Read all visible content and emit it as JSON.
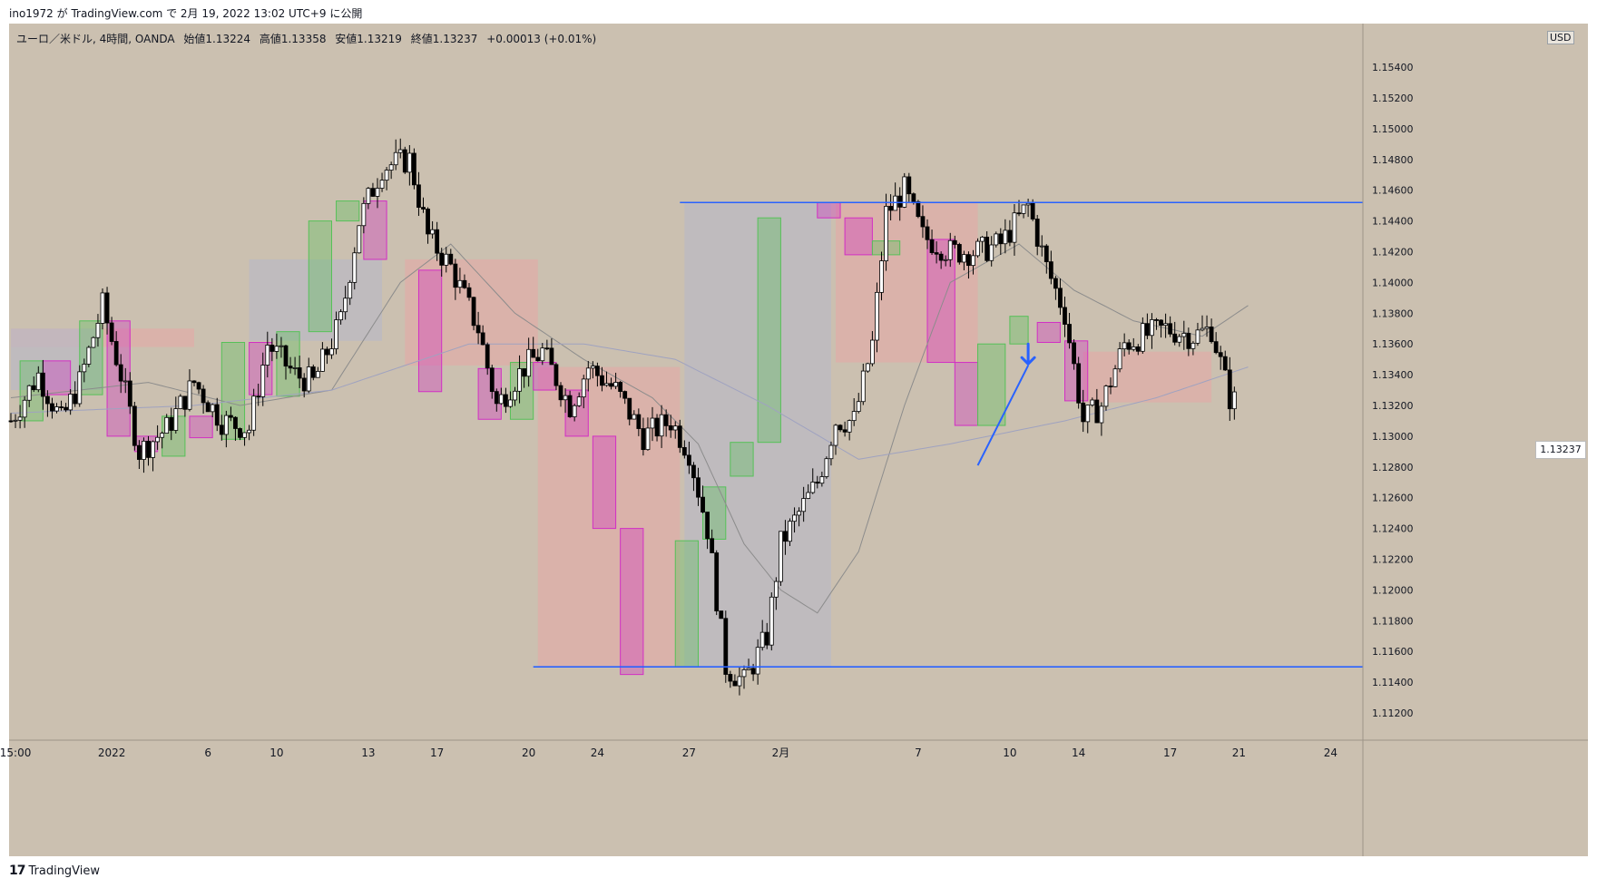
{
  "publish_line": "ino1972 が TradingView.com で 2月 19, 2022 13:02 UTC+9 に公開",
  "legend": {
    "symbol": "ユーロ／米ドル, 4時間, OANDA",
    "open": "始値1.13224",
    "high": "高値1.13358",
    "low": "安値1.13219",
    "close": "終値1.13237",
    "change": "+0.00013 (+0.01%)"
  },
  "currency": "USD",
  "last_price_label": "1.13237",
  "brand": {
    "logo": "17",
    "name": "TradingView"
  },
  "colors": {
    "background": "#cbc0b0",
    "up_candle": "#ffffff",
    "down_candle": "#000000",
    "green_box": "#56c158",
    "magenta_box": "#d22fc4",
    "pink_zone": "#e8a6a6",
    "grey_zone": "#b9b9c4",
    "level_line": "#2962ff"
  },
  "chart_data": {
    "type": "candlestick",
    "title": "",
    "ylim": [
      1.111,
      1.156
    ],
    "y_ticks": [
      "1.15400",
      "1.15200",
      "1.15000",
      "1.14800",
      "1.14600",
      "1.14400",
      "1.14200",
      "1.14000",
      "1.13800",
      "1.13600",
      "1.13400",
      "1.13200",
      "1.13000",
      "1.12800",
      "1.12600",
      "1.12400",
      "1.12200",
      "1.12000",
      "1.11800",
      "1.11600",
      "1.11400",
      "1.11200"
    ],
    "x_ticks": [
      {
        "label": "15:00",
        "bar": 1
      },
      {
        "label": "2022",
        "bar": 22
      },
      {
        "label": "6",
        "bar": 43
      },
      {
        "label": "10",
        "bar": 58
      },
      {
        "label": "13",
        "bar": 78
      },
      {
        "label": "17",
        "bar": 93
      },
      {
        "label": "20",
        "bar": 113
      },
      {
        "label": "24",
        "bar": 128
      },
      {
        "label": "27",
        "bar": 148
      },
      {
        "label": "2月",
        "bar": 168
      },
      {
        "label": "7",
        "bar": 198
      },
      {
        "label": "10",
        "bar": 218
      },
      {
        "label": "14",
        "bar": 233
      },
      {
        "label": "17",
        "bar": 253
      },
      {
        "label": "21",
        "bar": 268
      },
      {
        "label": "24",
        "bar": 288
      }
    ],
    "candle_series": {
      "name": "EUR/USD 4H",
      "unit": "price",
      "anchors": [
        [
          0,
          1.131
        ],
        [
          6,
          1.134
        ],
        [
          11,
          1.131
        ],
        [
          15,
          1.1335
        ],
        [
          20,
          1.1385
        ],
        [
          24,
          1.134
        ],
        [
          28,
          1.129
        ],
        [
          34,
          1.1305
        ],
        [
          40,
          1.1335
        ],
        [
          46,
          1.131
        ],
        [
          52,
          1.1305
        ],
        [
          56,
          1.136
        ],
        [
          62,
          1.134
        ],
        [
          66,
          1.1335
        ],
        [
          72,
          1.1375
        ],
        [
          76,
          1.144
        ],
        [
          81,
          1.1475
        ],
        [
          87,
          1.148
        ],
        [
          91,
          1.143
        ],
        [
          96,
          1.141
        ],
        [
          102,
          1.137
        ],
        [
          106,
          1.132
        ],
        [
          112,
          1.1345
        ],
        [
          116,
          1.1355
        ],
        [
          122,
          1.132
        ],
        [
          126,
          1.1345
        ],
        [
          132,
          1.133
        ],
        [
          138,
          1.13
        ],
        [
          144,
          1.131
        ],
        [
          148,
          1.129
        ],
        [
          152,
          1.124
        ],
        [
          156,
          1.115
        ],
        [
          160,
          1.114
        ],
        [
          165,
          1.117
        ],
        [
          168,
          1.123
        ],
        [
          172,
          1.125
        ],
        [
          176,
          1.127
        ],
        [
          180,
          1.131
        ],
        [
          184,
          1.131
        ],
        [
          188,
          1.136
        ],
        [
          191,
          1.1445
        ],
        [
          195,
          1.146
        ],
        [
          199,
          1.143
        ],
        [
          205,
          1.142
        ],
        [
          211,
          1.142
        ],
        [
          216,
          1.1425
        ],
        [
          222,
          1.145
        ],
        [
          226,
          1.141
        ],
        [
          230,
          1.138
        ],
        [
          234,
          1.131
        ],
        [
          238,
          1.132
        ],
        [
          243,
          1.136
        ],
        [
          247,
          1.1365
        ],
        [
          252,
          1.137
        ],
        [
          258,
          1.1365
        ],
        [
          262,
          1.137
        ],
        [
          266,
          1.1325
        ],
        [
          267,
          1.1323
        ]
      ]
    },
    "moving_averages": [
      {
        "name": "",
        "color": "#8c8c8c",
        "anchors": [
          [
            0,
            1.1325
          ],
          [
            30,
            1.1335
          ],
          [
            50,
            1.132
          ],
          [
            70,
            1.133
          ],
          [
            85,
            1.14
          ],
          [
            96,
            1.1425
          ],
          [
            110,
            1.138
          ],
          [
            125,
            1.135
          ],
          [
            140,
            1.1325
          ],
          [
            150,
            1.1295
          ],
          [
            160,
            1.123
          ],
          [
            168,
            1.12
          ],
          [
            176,
            1.1185
          ],
          [
            185,
            1.1225
          ],
          [
            195,
            1.132
          ],
          [
            205,
            1.14
          ],
          [
            220,
            1.1425
          ],
          [
            232,
            1.1395
          ],
          [
            245,
            1.1375
          ],
          [
            260,
            1.1365
          ],
          [
            270,
            1.1385
          ]
        ]
      },
      {
        "name": "",
        "color": "#9fa2c0",
        "anchors": [
          [
            0,
            1.1315
          ],
          [
            40,
            1.132
          ],
          [
            70,
            1.133
          ],
          [
            100,
            1.136
          ],
          [
            125,
            1.136
          ],
          [
            145,
            1.135
          ],
          [
            165,
            1.132
          ],
          [
            185,
            1.1285
          ],
          [
            205,
            1.1295
          ],
          [
            230,
            1.131
          ],
          [
            250,
            1.1325
          ],
          [
            270,
            1.1345
          ]
        ]
      }
    ],
    "zones": [
      {
        "type": "pink",
        "bars": [
          0,
          40
        ],
        "price": [
          1.137,
          1.1358
        ]
      },
      {
        "type": "grey",
        "bars": [
          0,
          20
        ],
        "price": [
          1.137,
          1.133
        ]
      },
      {
        "type": "grey",
        "bars": [
          52,
          81
        ],
        "price": [
          1.1415,
          1.1362
        ]
      },
      {
        "type": "pink",
        "bars": [
          86,
          115
        ],
        "price": [
          1.1415,
          1.1346
        ]
      },
      {
        "type": "pink",
        "bars": [
          115,
          146
        ],
        "price": [
          1.1345,
          1.115
        ]
      },
      {
        "type": "grey",
        "bars": [
          147,
          179
        ],
        "price": [
          1.1452,
          1.115
        ]
      },
      {
        "type": "pink",
        "bars": [
          180,
          211
        ],
        "price": [
          1.1452,
          1.1348
        ]
      },
      {
        "type": "pink",
        "bars": [
          234,
          262
        ],
        "price": [
          1.1355,
          1.1322
        ]
      }
    ],
    "boxes": [
      {
        "color": "green",
        "bars": [
          2,
          7
        ],
        "price": [
          1.1349,
          1.131
        ]
      },
      {
        "color": "magenta",
        "bars": [
          7,
          13
        ],
        "price": [
          1.1349,
          1.1327
        ]
      },
      {
        "color": "green",
        "bars": [
          15,
          20
        ],
        "price": [
          1.1375,
          1.1327
        ]
      },
      {
        "color": "magenta",
        "bars": [
          21,
          26
        ],
        "price": [
          1.1375,
          1.13
        ]
      },
      {
        "color": "magenta",
        "bars": [
          27,
          32
        ],
        "price": [
          1.13,
          1.129
        ]
      },
      {
        "color": "green",
        "bars": [
          33,
          38
        ],
        "price": [
          1.1313,
          1.1287
        ]
      },
      {
        "color": "magenta",
        "bars": [
          39,
          44
        ],
        "price": [
          1.1313,
          1.1299
        ]
      },
      {
        "color": "green",
        "bars": [
          46,
          51
        ],
        "price": [
          1.1361,
          1.1298
        ]
      },
      {
        "color": "magenta",
        "bars": [
          52,
          57
        ],
        "price": [
          1.1361,
          1.1327
        ]
      },
      {
        "color": "green",
        "bars": [
          58,
          63
        ],
        "price": [
          1.1368,
          1.1326
        ]
      },
      {
        "color": "green",
        "bars": [
          65,
          70
        ],
        "price": [
          1.144,
          1.1368
        ]
      },
      {
        "color": "green",
        "bars": [
          71,
          76
        ],
        "price": [
          1.1453,
          1.144
        ]
      },
      {
        "color": "magenta",
        "bars": [
          77,
          82
        ],
        "price": [
          1.1453,
          1.1415
        ]
      },
      {
        "color": "magenta",
        "bars": [
          89,
          94
        ],
        "price": [
          1.1408,
          1.1329
        ]
      },
      {
        "color": "magenta",
        "bars": [
          102,
          107
        ],
        "price": [
          1.1344,
          1.1311
        ]
      },
      {
        "color": "green",
        "bars": [
          109,
          114
        ],
        "price": [
          1.1348,
          1.1311
        ]
      },
      {
        "color": "magenta",
        "bars": [
          114,
          119
        ],
        "price": [
          1.1348,
          1.133
        ]
      },
      {
        "color": "magenta",
        "bars": [
          121,
          126
        ],
        "price": [
          1.133,
          1.13
        ]
      },
      {
        "color": "magenta",
        "bars": [
          127,
          132
        ],
        "price": [
          1.13,
          1.124
        ]
      },
      {
        "color": "magenta",
        "bars": [
          133,
          138
        ],
        "price": [
          1.124,
          1.1145
        ]
      },
      {
        "color": "green",
        "bars": [
          145,
          150
        ],
        "price": [
          1.1232,
          1.115
        ]
      },
      {
        "color": "green",
        "bars": [
          151,
          156
        ],
        "price": [
          1.1267,
          1.1233
        ]
      },
      {
        "color": "green",
        "bars": [
          157,
          162
        ],
        "price": [
          1.1296,
          1.1274
        ]
      },
      {
        "color": "green",
        "bars": [
          163,
          168
        ],
        "price": [
          1.1442,
          1.1296
        ]
      },
      {
        "color": "magenta",
        "bars": [
          176,
          181
        ],
        "price": [
          1.1452,
          1.1442
        ]
      },
      {
        "color": "magenta",
        "bars": [
          182,
          188
        ],
        "price": [
          1.1442,
          1.1418
        ]
      },
      {
        "color": "green",
        "bars": [
          188,
          194
        ],
        "price": [
          1.1427,
          1.1418
        ]
      },
      {
        "color": "magenta",
        "bars": [
          200,
          206
        ],
        "price": [
          1.1428,
          1.1348
        ]
      },
      {
        "color": "magenta",
        "bars": [
          206,
          211
        ],
        "price": [
          1.1348,
          1.1307
        ]
      },
      {
        "color": "green",
        "bars": [
          211,
          217
        ],
        "price": [
          1.136,
          1.1307
        ]
      },
      {
        "color": "green",
        "bars": [
          218,
          222
        ],
        "price": [
          1.1378,
          1.136
        ]
      },
      {
        "color": "magenta",
        "bars": [
          224,
          229
        ],
        "price": [
          1.1374,
          1.1361
        ]
      },
      {
        "color": "magenta",
        "bars": [
          230,
          235
        ],
        "price": [
          1.1362,
          1.1323
        ]
      }
    ],
    "levels": [
      {
        "price": 1.1452,
        "bars": [
          146,
          300
        ]
      },
      {
        "price": 1.115,
        "bars": [
          114,
          300
        ]
      }
    ],
    "trendline": {
      "from": [
        211,
        1.1281
      ],
      "to": [
        222,
        1.1346
      ]
    },
    "arrow": {
      "bar": 222,
      "price": 1.1347
    }
  }
}
